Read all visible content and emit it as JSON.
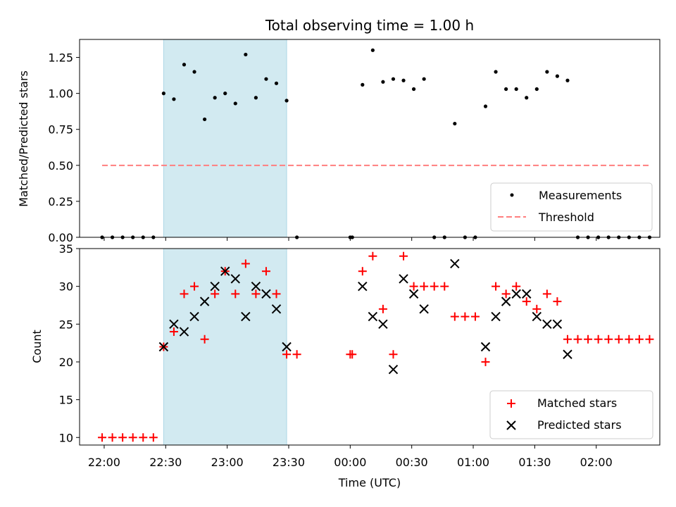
{
  "title": "Total observing time = 1.00 h",
  "xlabel": "Time (UTC)",
  "colors": {
    "shade": "#add8e6",
    "threshold": "#ff7f7f",
    "matched": "#ff0000",
    "predicted": "#000000",
    "measurements": "#000000"
  },
  "chart_data": [
    {
      "type": "scatter",
      "ylabel": "Matched/Predicted stars",
      "ylim": [
        0,
        1.375
      ],
      "yticks": [
        "0.00",
        "0.25",
        "0.50",
        "0.75",
        "1.00",
        "1.25"
      ],
      "xlim": [
        -12,
        271
      ],
      "shaded_span": [
        29,
        89
      ],
      "threshold": {
        "name": "Threshold",
        "value": 0.5,
        "x_range": [
          -1,
          266
        ]
      },
      "legend": {
        "position": "lower right",
        "entries": [
          "Measurements",
          "Threshold"
        ]
      },
      "series": [
        {
          "name": "Measurements",
          "x": [
            -1,
            4,
            9,
            14,
            19,
            24,
            29,
            34,
            39,
            44,
            49,
            54,
            59,
            64,
            69,
            74,
            79,
            84,
            89,
            94,
            120,
            121,
            126,
            131,
            136,
            141,
            146,
            151,
            156,
            161,
            166,
            171,
            176,
            181,
            186,
            191,
            196,
            201,
            206,
            211,
            216,
            221,
            226,
            231,
            236,
            241,
            246,
            251,
            256,
            261,
            266
          ],
          "y": [
            0,
            0,
            0,
            0,
            0,
            0,
            1.0,
            0.96,
            1.2,
            1.15,
            0.82,
            0.97,
            1.0,
            0.93,
            1.27,
            0.97,
            1.1,
            1.07,
            0.95,
            0,
            0,
            0,
            1.06,
            1.3,
            1.08,
            1.1,
            1.09,
            1.03,
            1.1,
            0,
            0,
            0.79,
            0,
            0,
            0.91,
            1.15,
            1.03,
            1.03,
            0.97,
            1.03,
            1.15,
            1.12,
            1.09,
            0,
            0,
            0,
            0,
            0,
            0,
            0,
            0
          ]
        }
      ]
    },
    {
      "type": "scatter",
      "ylabel": "Count",
      "ylim": [
        9,
        35
      ],
      "yticks": [
        "10",
        "15",
        "20",
        "25",
        "30",
        "35"
      ],
      "xlim": [
        -12,
        271
      ],
      "xticks": [
        "22:00",
        "22:30",
        "23:00",
        "23:30",
        "00:00",
        "00:30",
        "01:00",
        "01:30",
        "02:00"
      ],
      "xtick_values": [
        0,
        30,
        60,
        90,
        120,
        150,
        180,
        210,
        240
      ],
      "shaded_span": [
        29,
        89
      ],
      "legend": {
        "position": "lower right",
        "entries": [
          "Matched stars",
          "Predicted stars"
        ]
      },
      "series": [
        {
          "name": "Matched stars",
          "x": [
            -1,
            4,
            9,
            14,
            19,
            24,
            29,
            34,
            39,
            44,
            49,
            54,
            59,
            64,
            69,
            74,
            79,
            84,
            89,
            94,
            120,
            121,
            126,
            131,
            136,
            141,
            146,
            151,
            156,
            161,
            166,
            171,
            176,
            181,
            186,
            191,
            196,
            201,
            206,
            211,
            216,
            221,
            226,
            231,
            236,
            241,
            246,
            251,
            256,
            261,
            266
          ],
          "y": [
            10,
            10,
            10,
            10,
            10,
            10,
            22,
            24,
            29,
            30,
            23,
            29,
            32,
            29,
            33,
            29,
            32,
            29,
            21,
            21,
            21,
            21,
            32,
            34,
            27,
            21,
            34,
            30,
            30,
            30,
            30,
            26,
            26,
            26,
            20,
            30,
            29,
            30,
            28,
            27,
            29,
            28,
            23,
            23,
            23,
            23,
            23,
            23,
            23,
            23,
            23
          ]
        },
        {
          "name": "Predicted stars",
          "x": [
            29,
            34,
            39,
            44,
            49,
            54,
            59,
            64,
            69,
            74,
            79,
            84,
            89,
            126,
            131,
            136,
            141,
            146,
            151,
            156,
            171,
            186,
            191,
            196,
            201,
            206,
            211,
            216,
            221,
            226
          ],
          "y": [
            22,
            25,
            24,
            26,
            28,
            30,
            32,
            31,
            26,
            30,
            29,
            27,
            22,
            30,
            26,
            25,
            19,
            31,
            29,
            27,
            33,
            22,
            26,
            28,
            29,
            29,
            26,
            25,
            25,
            21
          ]
        }
      ]
    }
  ]
}
